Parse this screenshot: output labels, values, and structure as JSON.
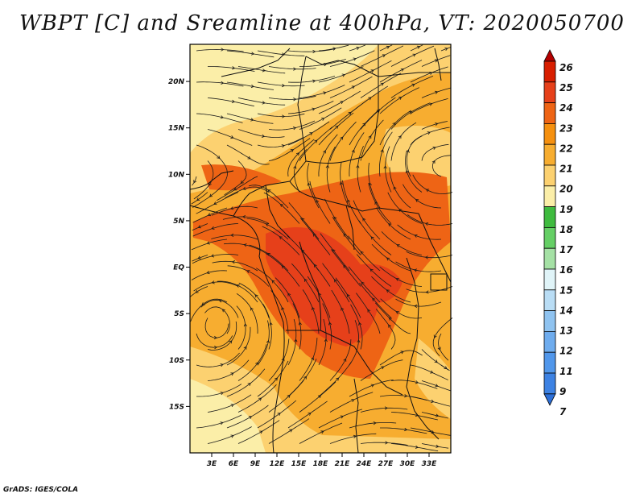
{
  "title": "WBPT [C] and Sreamline at 400hPa, VT: 2020050700",
  "footer": "GrADS: IGES/COLA",
  "map": {
    "lat_range": [
      -20,
      24
    ],
    "lon_range": [
      0,
      36
    ],
    "lat_ticks": [
      {
        "value": 20,
        "label": "20N"
      },
      {
        "value": 15,
        "label": "15N"
      },
      {
        "value": 10,
        "label": "10N"
      },
      {
        "value": 5,
        "label": "5N"
      },
      {
        "value": 0,
        "label": "EQ"
      },
      {
        "value": -5,
        "label": "5S"
      },
      {
        "value": -10,
        "label": "10S"
      },
      {
        "value": -15,
        "label": "15S"
      }
    ],
    "lon_ticks": [
      {
        "value": 3,
        "label": "3E"
      },
      {
        "value": 6,
        "label": "6E"
      },
      {
        "value": 9,
        "label": "9E"
      },
      {
        "value": 12,
        "label": "12E"
      },
      {
        "value": 15,
        "label": "15E"
      },
      {
        "value": 18,
        "label": "18E"
      },
      {
        "value": 21,
        "label": "21E"
      },
      {
        "value": 24,
        "label": "24E"
      },
      {
        "value": 27,
        "label": "27E"
      },
      {
        "value": 30,
        "label": "30E"
      },
      {
        "value": 33,
        "label": "33E"
      }
    ]
  },
  "colorbar": {
    "labels": [
      "26",
      "25",
      "24",
      "23",
      "22",
      "21",
      "20",
      "19",
      "18",
      "17",
      "16",
      "15",
      "14",
      "13",
      "12",
      "11",
      "9",
      "7"
    ],
    "colors": [
      "#b40000",
      "#d81e00",
      "#e6401a",
      "#ee6415",
      "#f5900f",
      "#f7ad30",
      "#fcd170",
      "#fbeea8",
      "#3fbb3f",
      "#65cf65",
      "#a5e1a5",
      "#e0f4f8",
      "#b9ddf5",
      "#8fc3f0",
      "#6eacee",
      "#5197eb",
      "#3d82e3",
      "#2c6fd8"
    ]
  }
}
